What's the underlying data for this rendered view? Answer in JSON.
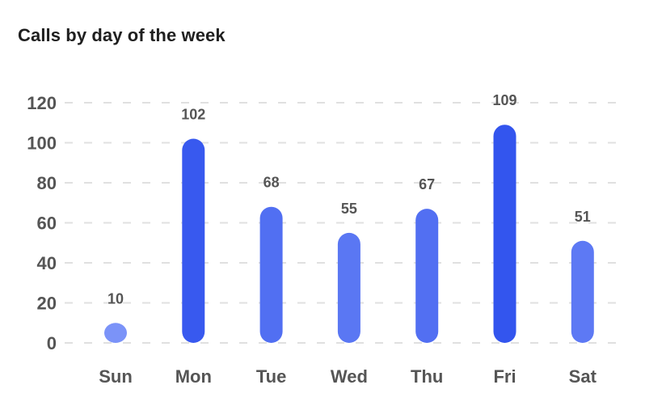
{
  "chart_data": {
    "type": "bar",
    "title": "Calls by day of the week",
    "xlabel": "",
    "ylabel": "",
    "categories": [
      "Sun",
      "Mon",
      "Tue",
      "Wed",
      "Thu",
      "Fri",
      "Sat"
    ],
    "values": [
      10,
      102,
      68,
      55,
      67,
      109,
      51
    ],
    "data_labels": [
      "10",
      "102",
      "68",
      "55",
      "67",
      "109",
      "51"
    ],
    "yticks": [
      0,
      20,
      40,
      60,
      80,
      100,
      120
    ],
    "ylim": [
      0,
      120
    ],
    "grid": true,
    "legend": "none",
    "colors": {
      "bar_low": "#7b93f8",
      "bar_high": "#3355ee"
    }
  }
}
